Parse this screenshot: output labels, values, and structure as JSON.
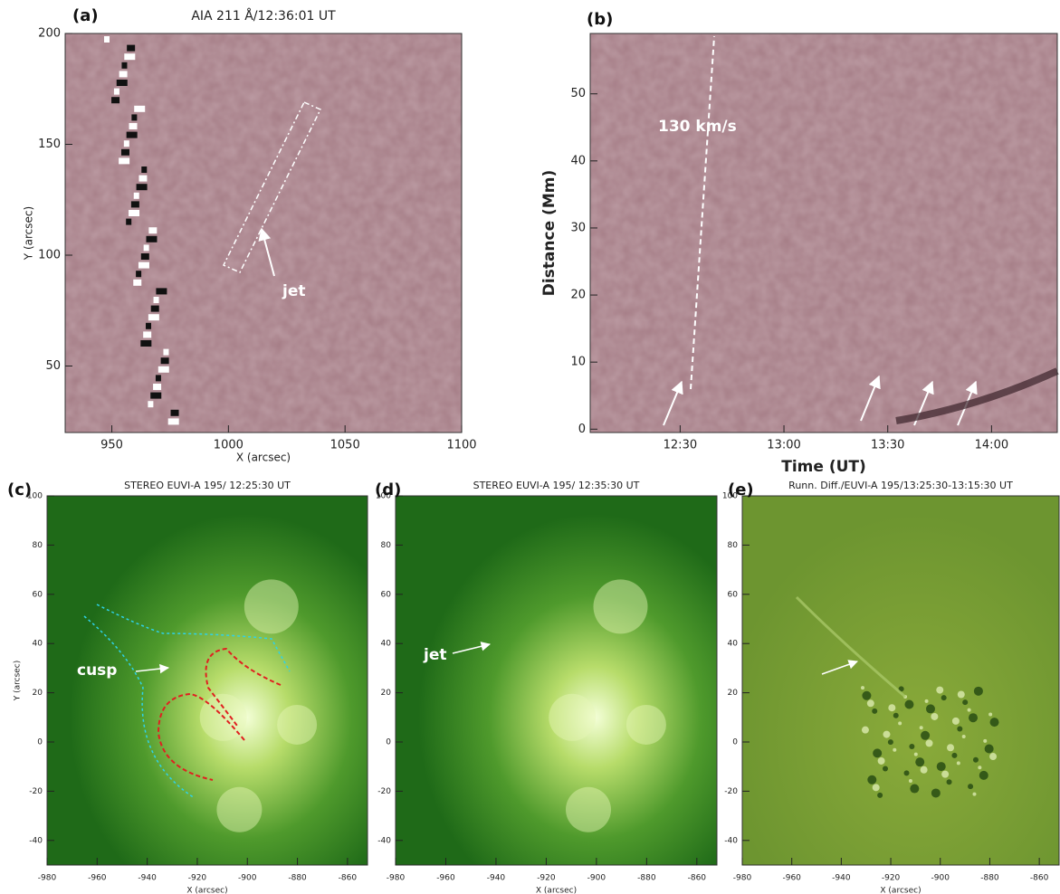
{
  "panels": [
    {
      "label": "(a)",
      "title": "AIA 211 Å/12:36:01 UT",
      "xlabel": "X (arcsec)",
      "ylabel": "Y (arcsec)",
      "xlim": [
        930,
        1100
      ],
      "ylim": [
        20,
        200
      ],
      "xticks": [
        950,
        1000,
        1050,
        1100
      ],
      "yticks": [
        50,
        100,
        150,
        200
      ],
      "annotations": [
        "jet"
      ]
    },
    {
      "label": "(b)",
      "xlabel": "Time (UT)",
      "ylabel": "Distance (Mm)",
      "xlim": [
        724,
        859
      ],
      "ylim": [
        -0.5,
        59
      ],
      "xticks": [
        {
          "value": 750,
          "label": "12:30"
        },
        {
          "value": 780,
          "label": "13:00"
        },
        {
          "value": 810,
          "label": "13:30"
        },
        {
          "value": 840,
          "label": "14:00"
        }
      ],
      "yticks": [
        0,
        10,
        20,
        30,
        40,
        50
      ],
      "annotations": [
        "130 km/s"
      ]
    },
    {
      "label": "(c)",
      "title": "STEREO EUVI-A 195/ 12:25:30 UT",
      "xlabel": "X (arcsec)",
      "ylabel": "Y (arcsec)",
      "xlim": [
        -980,
        -852
      ],
      "ylim": [
        -50,
        100
      ],
      "xticks": [
        -980,
        -960,
        -940,
        -920,
        -900,
        -880,
        -860
      ],
      "yticks": [
        -40,
        -20,
        0,
        20,
        40,
        60,
        80,
        100
      ],
      "annotations": [
        "cusp"
      ]
    },
    {
      "label": "(d)",
      "title": "STEREO EUVI-A 195/ 12:35:30 UT",
      "xlabel": "X (arcsec)",
      "xlim": [
        -980,
        -852
      ],
      "ylim": [
        -50,
        100
      ],
      "xticks": [
        -980,
        -960,
        -940,
        -920,
        -900,
        -880,
        -860
      ],
      "yticks": [
        -40,
        -20,
        0,
        20,
        40,
        60,
        80,
        100
      ],
      "annotations": [
        "jet"
      ]
    },
    {
      "label": "(e)",
      "title": "Runn. Diff./EUVI-A 195/13:25:30-13:15:30 UT",
      "xlabel": "X (arcsec)",
      "xlim": [
        -980,
        -852
      ],
      "ylim": [
        -50,
        100
      ],
      "xticks": [
        -980,
        -960,
        -940,
        -920,
        -900,
        -880,
        -860
      ],
      "yticks": [
        -40,
        -20,
        0,
        20,
        40,
        60,
        80,
        100
      ]
    }
  ]
}
